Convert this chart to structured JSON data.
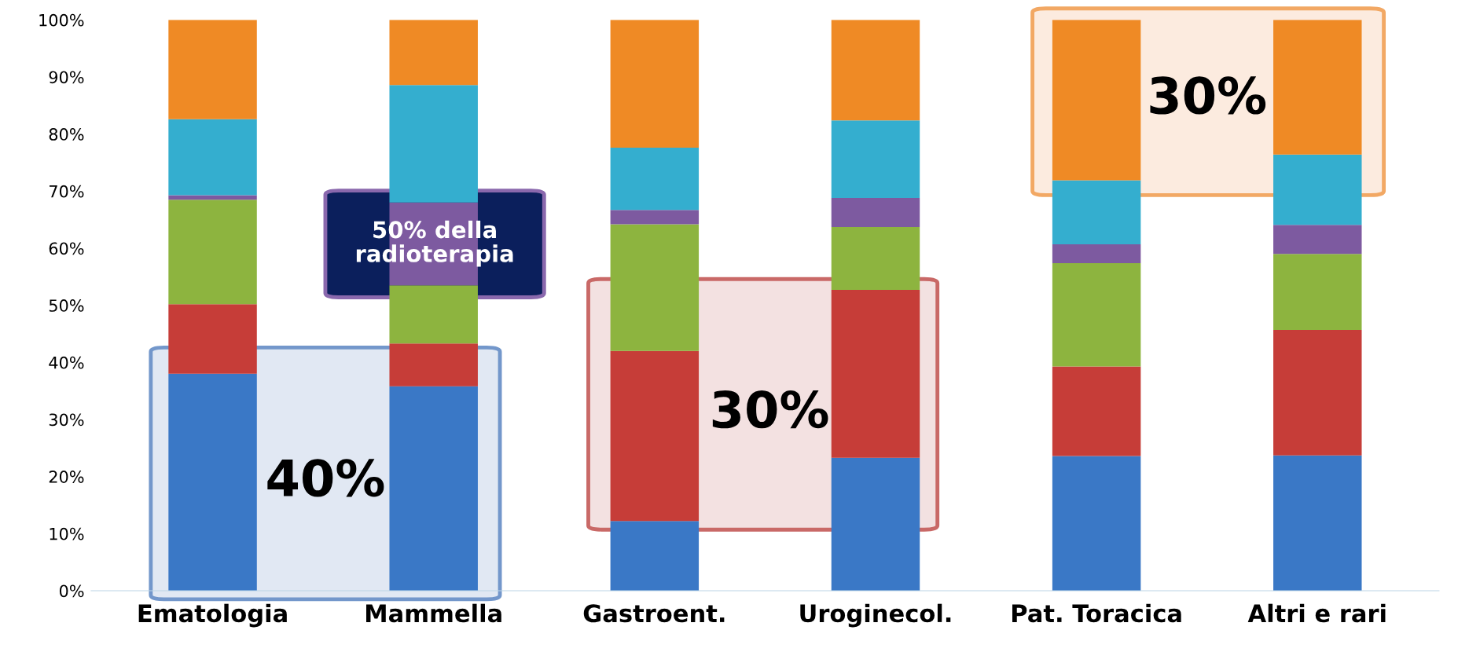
{
  "chart_data": {
    "type": "bar",
    "stacked": true,
    "categories": [
      "Ematologia",
      "Mammella",
      "Gastroent.",
      "Uroginecol.",
      "Pat. Toracica",
      "Altri e rari"
    ],
    "series": [
      {
        "color": "#3a78c6",
        "values": [
          38.0,
          35.8,
          12.2,
          23.3,
          23.6,
          23.7
        ]
      },
      {
        "color": "#c63d38",
        "values": [
          12.2,
          7.5,
          29.8,
          29.4,
          15.7,
          22.0
        ]
      },
      {
        "color": "#8db43f",
        "values": [
          18.3,
          10.2,
          22.2,
          11.0,
          18.1,
          13.3
        ]
      },
      {
        "color": "#7d5aa0",
        "values": [
          0.8,
          14.5,
          2.5,
          5.1,
          3.3,
          5.1
        ]
      },
      {
        "color": "#34aecf",
        "values": [
          13.3,
          20.6,
          10.9,
          13.6,
          11.2,
          12.3
        ]
      },
      {
        "color": "#ef8a25",
        "values": [
          17.4,
          11.4,
          22.4,
          17.6,
          28.1,
          23.6
        ]
      }
    ],
    "ylim": [
      0,
      100
    ],
    "yticks": [
      {
        "value": 0,
        "label": "0%"
      },
      {
        "value": 10,
        "label": "10%"
      },
      {
        "value": 20,
        "label": "20%"
      },
      {
        "value": 30,
        "label": "30%"
      },
      {
        "value": 40,
        "label": "40%"
      },
      {
        "value": 50,
        "label": "50%"
      },
      {
        "value": 60,
        "label": "60%"
      },
      {
        "value": 70,
        "label": "70%"
      },
      {
        "value": 80,
        "label": "80%"
      },
      {
        "value": 90,
        "label": "90%"
      },
      {
        "value": 100,
        "label": "100%"
      }
    ],
    "grid": false,
    "annotations": [
      "40%",
      "50% della radioterapia",
      "30%",
      "30%"
    ]
  }
}
